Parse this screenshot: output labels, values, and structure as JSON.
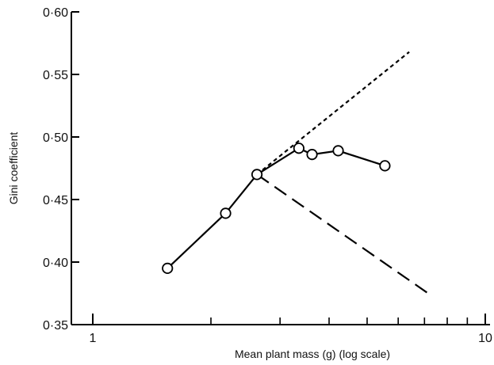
{
  "chart_data": {
    "type": "line",
    "xlabel": "Mean plant mass (g) (log scale)",
    "ylabel": "Gini coefficient",
    "x_scale": "log",
    "xlim": [
      0.88,
      10.1
    ],
    "ylim": [
      0.35,
      0.6
    ],
    "grid": false,
    "x_ticks": [
      {
        "value": 1,
        "label": "1"
      },
      {
        "value": 10,
        "label": "10"
      }
    ],
    "x_minor_ticks": [
      2,
      3,
      4,
      5,
      6,
      7,
      8,
      9
    ],
    "y_ticks": [
      {
        "value": 0.35,
        "label": "0·35"
      },
      {
        "value": 0.4,
        "label": "0·40"
      },
      {
        "value": 0.45,
        "label": "0·45"
      },
      {
        "value": 0.5,
        "label": "0·50"
      },
      {
        "value": 0.55,
        "label": "0·55"
      },
      {
        "value": 0.6,
        "label": "0·60"
      }
    ],
    "series": [
      {
        "style": "solid line with open circles",
        "x": [
          1.55,
          2.18,
          2.62,
          3.35,
          3.62,
          4.22,
          5.55
        ],
        "y": [
          0.395,
          0.439,
          0.47,
          0.491,
          0.486,
          0.489,
          0.477
        ]
      },
      {
        "style": "short-dashed line",
        "x": [
          2.62,
          6.4
        ],
        "y": [
          0.47,
          0.568
        ]
      },
      {
        "style": "long-dashed line",
        "x": [
          2.62,
          7.15
        ],
        "y": [
          0.47,
          0.375
        ]
      }
    ]
  }
}
